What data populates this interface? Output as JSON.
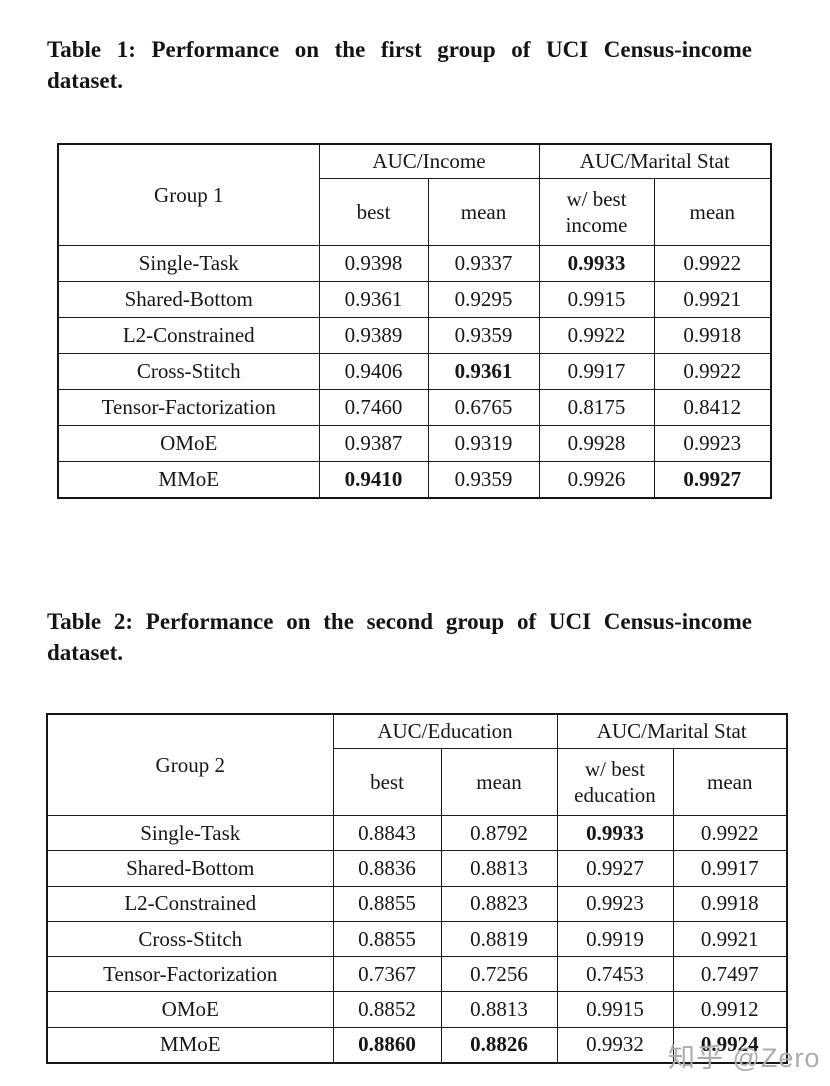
{
  "watermark": {
    "text": "知乎 @Zero",
    "color": "#acacac"
  },
  "tables": [
    {
      "caption": "Table 1: Performance on the first group of UCI Census-income dataset.",
      "corner_label": "Group 1",
      "groups": [
        {
          "label": "AUC/Income",
          "subcolumns": [
            "best",
            "mean"
          ]
        },
        {
          "label": "AUC/Marital Stat",
          "subcolumns": [
            "w/ best\nincome",
            "mean"
          ]
        }
      ],
      "rows": [
        {
          "method": "Single-Task",
          "values": [
            "0.9398",
            "0.9337",
            "0.9933",
            "0.9922"
          ],
          "bold": [
            false,
            false,
            true,
            false
          ]
        },
        {
          "method": "Shared-Bottom",
          "values": [
            "0.9361",
            "0.9295",
            "0.9915",
            "0.9921"
          ],
          "bold": [
            false,
            false,
            false,
            false
          ]
        },
        {
          "method": "L2-Constrained",
          "values": [
            "0.9389",
            "0.9359",
            "0.9922",
            "0.9918"
          ],
          "bold": [
            false,
            false,
            false,
            false
          ]
        },
        {
          "method": "Cross-Stitch",
          "values": [
            "0.9406",
            "0.9361",
            "0.9917",
            "0.9922"
          ],
          "bold": [
            false,
            true,
            false,
            false
          ]
        },
        {
          "method": "Tensor-Factorization",
          "values": [
            "0.7460",
            "0.6765",
            "0.8175",
            "0.8412"
          ],
          "bold": [
            false,
            false,
            false,
            false
          ]
        },
        {
          "method": "OMoE",
          "values": [
            "0.9387",
            "0.9319",
            "0.9928",
            "0.9923"
          ],
          "bold": [
            false,
            false,
            false,
            false
          ]
        },
        {
          "method": "MMoE",
          "values": [
            "0.9410",
            "0.9359",
            "0.9926",
            "0.9927"
          ],
          "bold": [
            true,
            false,
            false,
            true
          ]
        }
      ]
    },
    {
      "caption": "Table 2: Performance on the second group of UCI Census-income dataset.",
      "corner_label": "Group 2",
      "groups": [
        {
          "label": "AUC/Education",
          "subcolumns": [
            "best",
            "mean"
          ]
        },
        {
          "label": "AUC/Marital Stat",
          "subcolumns": [
            "w/ best\neducation",
            "mean"
          ]
        }
      ],
      "rows": [
        {
          "method": "Single-Task",
          "values": [
            "0.8843",
            "0.8792",
            "0.9933",
            "0.9922"
          ],
          "bold": [
            false,
            false,
            true,
            false
          ]
        },
        {
          "method": "Shared-Bottom",
          "values": [
            "0.8836",
            "0.8813",
            "0.9927",
            "0.9917"
          ],
          "bold": [
            false,
            false,
            false,
            false
          ]
        },
        {
          "method": "L2-Constrained",
          "values": [
            "0.8855",
            "0.8823",
            "0.9923",
            "0.9918"
          ],
          "bold": [
            false,
            false,
            false,
            false
          ]
        },
        {
          "method": "Cross-Stitch",
          "values": [
            "0.8855",
            "0.8819",
            "0.9919",
            "0.9921"
          ],
          "bold": [
            false,
            false,
            false,
            false
          ]
        },
        {
          "method": "Tensor-Factorization",
          "values": [
            "0.7367",
            "0.7256",
            "0.7453",
            "0.7497"
          ],
          "bold": [
            false,
            false,
            false,
            false
          ]
        },
        {
          "method": "OMoE",
          "values": [
            "0.8852",
            "0.8813",
            "0.9915",
            "0.9912"
          ],
          "bold": [
            false,
            false,
            false,
            false
          ]
        },
        {
          "method": "MMoE",
          "values": [
            "0.8860",
            "0.8826",
            "0.9932",
            "0.9924"
          ],
          "bold": [
            true,
            true,
            false,
            true
          ]
        }
      ]
    }
  ]
}
